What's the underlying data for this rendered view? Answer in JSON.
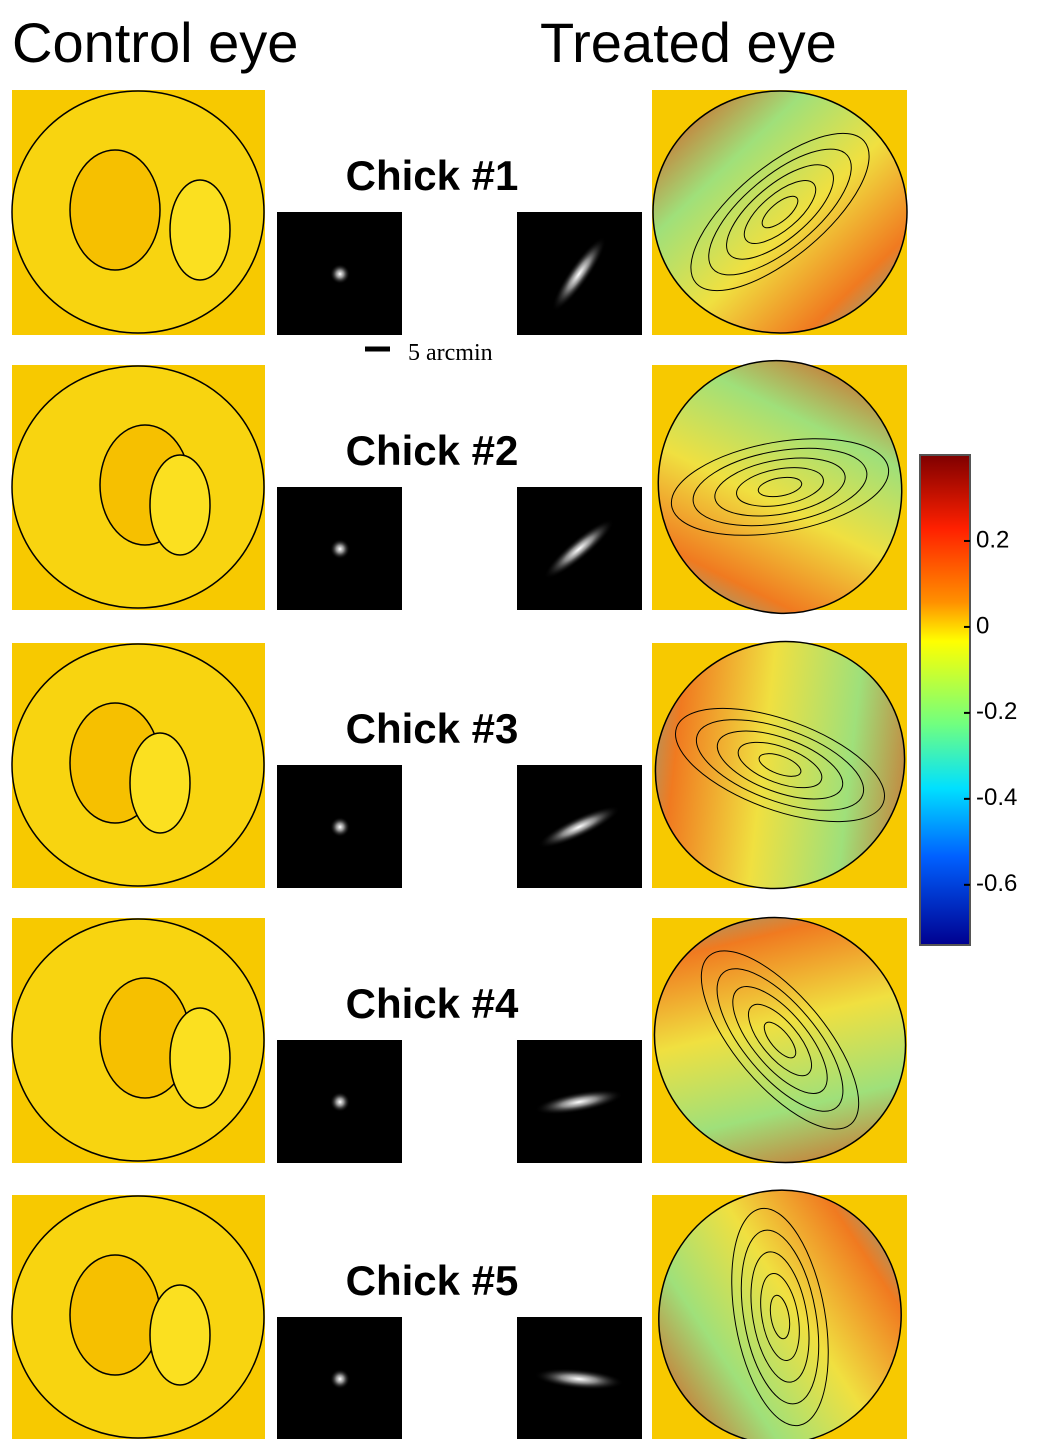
{
  "header": {
    "left": "Control eye",
    "right": "Treated eye"
  },
  "rows": [
    {
      "label": "Chick #1"
    },
    {
      "label": "Chick #2"
    },
    {
      "label": "Chick #3"
    },
    {
      "label": "Chick #4"
    },
    {
      "label": "Chick #5"
    }
  ],
  "scale_bar": "5 arcmin",
  "colorbar": {
    "lim": [
      -0.74,
      0.4
    ],
    "ticks": [
      0.2,
      0,
      -0.2,
      -0.4,
      -0.6
    ]
  }
}
